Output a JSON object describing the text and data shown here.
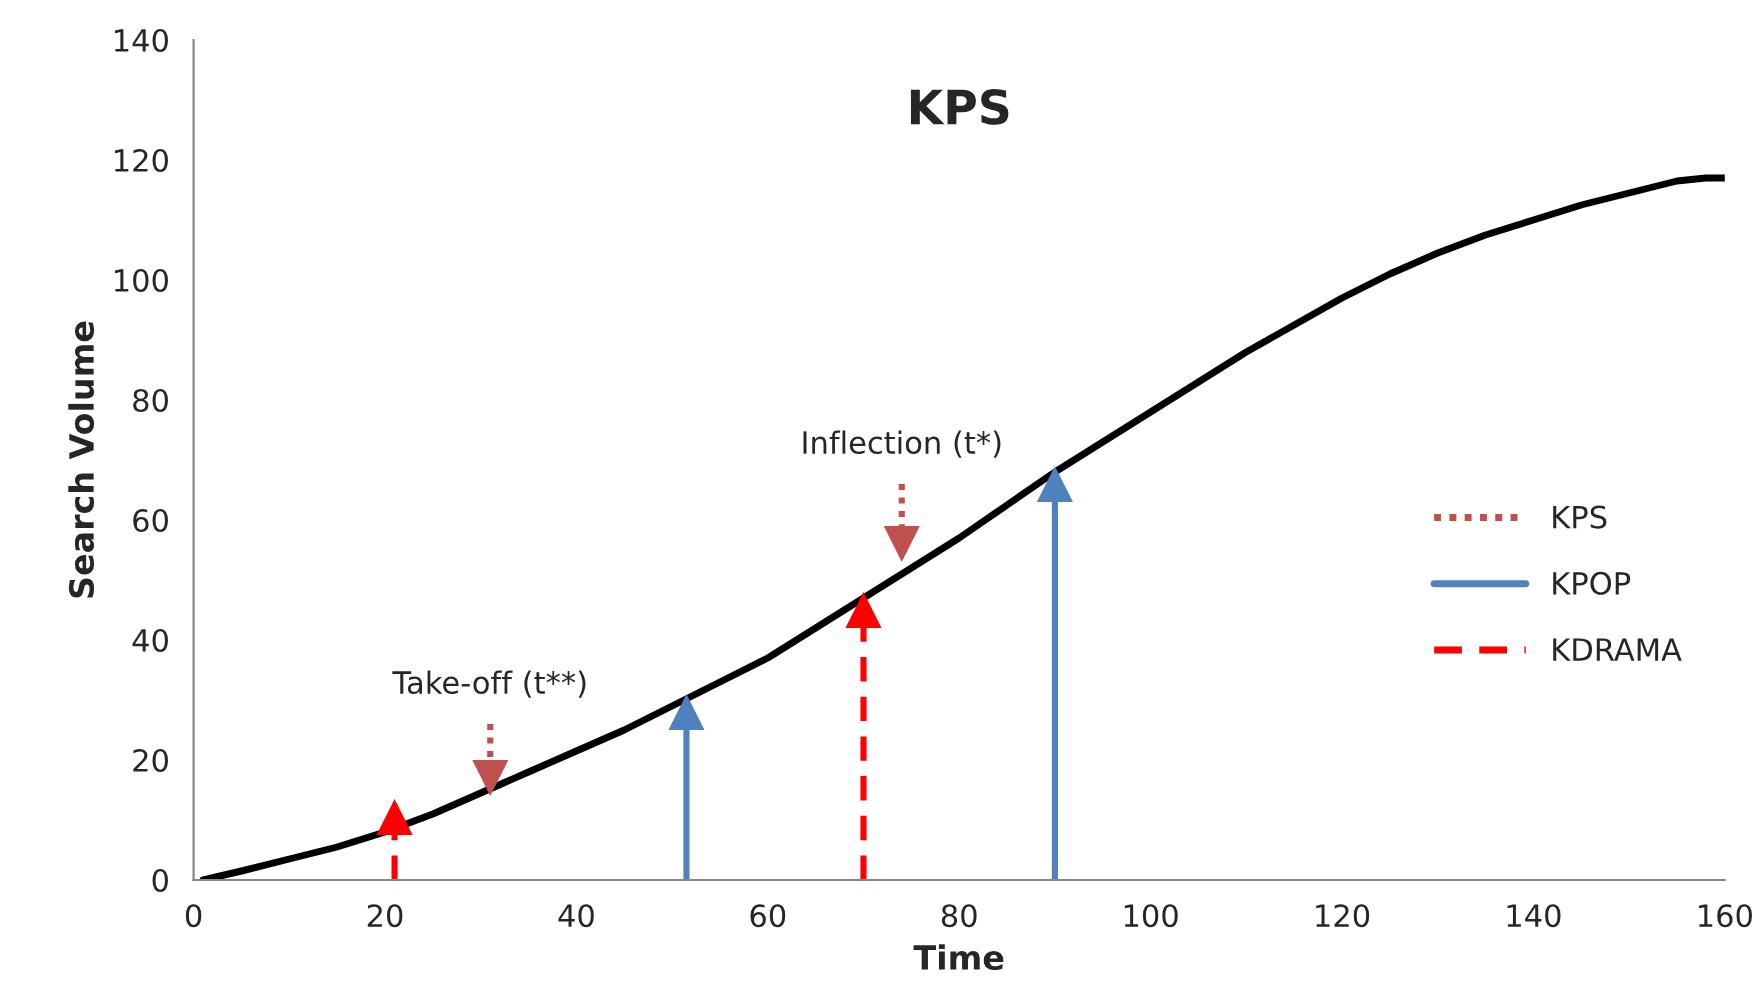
{
  "chart_data": {
    "type": "line",
    "title": "KPS",
    "xlabel": "Time",
    "ylabel": "Search Volume",
    "xlim": [
      0,
      160
    ],
    "xticks": [
      0,
      20,
      40,
      60,
      80,
      100,
      120,
      140,
      160
    ],
    "ylim": [
      0,
      140
    ],
    "yticks": [
      0,
      20,
      40,
      60,
      80,
      100,
      120,
      140
    ],
    "grid": false,
    "legend": "right",
    "marker": "none",
    "series": [
      {
        "color": "#000000",
        "line_style": "solid",
        "x": [
          1,
          5,
          10,
          15,
          20,
          25,
          30,
          35,
          40,
          45,
          50,
          55,
          60,
          65,
          70,
          75,
          80,
          85,
          90,
          95,
          100,
          105,
          110,
          115,
          120,
          125,
          130,
          135,
          140,
          145,
          150,
          155,
          158,
          160
        ],
        "values": [
          0,
          1.5,
          3.5,
          5.5,
          8,
          11,
          14.5,
          18,
          21.5,
          25,
          29,
          33,
          37,
          42,
          47,
          52,
          57,
          62.5,
          68,
          73,
          78,
          83,
          88,
          92.5,
          97,
          101,
          104.5,
          107.5,
          110,
          112.5,
          114.5,
          116.5,
          117,
          117
        ]
      },
      {
        "name": "KPS",
        "color": "#c0504d",
        "line_style": "dotted",
        "marker": "triangle",
        "x": [
          31,
          31,
          null,
          74,
          74
        ],
        "values": [
          26,
          17,
          null,
          66,
          56
        ]
      },
      {
        "name": "KPOP",
        "color": "#4f81bd",
        "line_style": "solid",
        "marker": "triangle",
        "x": [
          51.5,
          51.5,
          null,
          90,
          90
        ],
        "values": [
          0,
          28,
          null,
          0,
          66
        ]
      },
      {
        "name": "KDRAMA",
        "color": "#ff0000",
        "line_style": "dashed",
        "marker": "triangle",
        "x": [
          21,
          21,
          null,
          70,
          70
        ],
        "values": [
          0,
          10.5,
          null,
          0,
          45
        ]
      }
    ],
    "annotations": [
      {
        "text": "Take-off (t**)",
        "x": 31,
        "y": 26
      },
      {
        "text": "Inflection (t*)",
        "x": 74,
        "y": 66
      }
    ]
  }
}
